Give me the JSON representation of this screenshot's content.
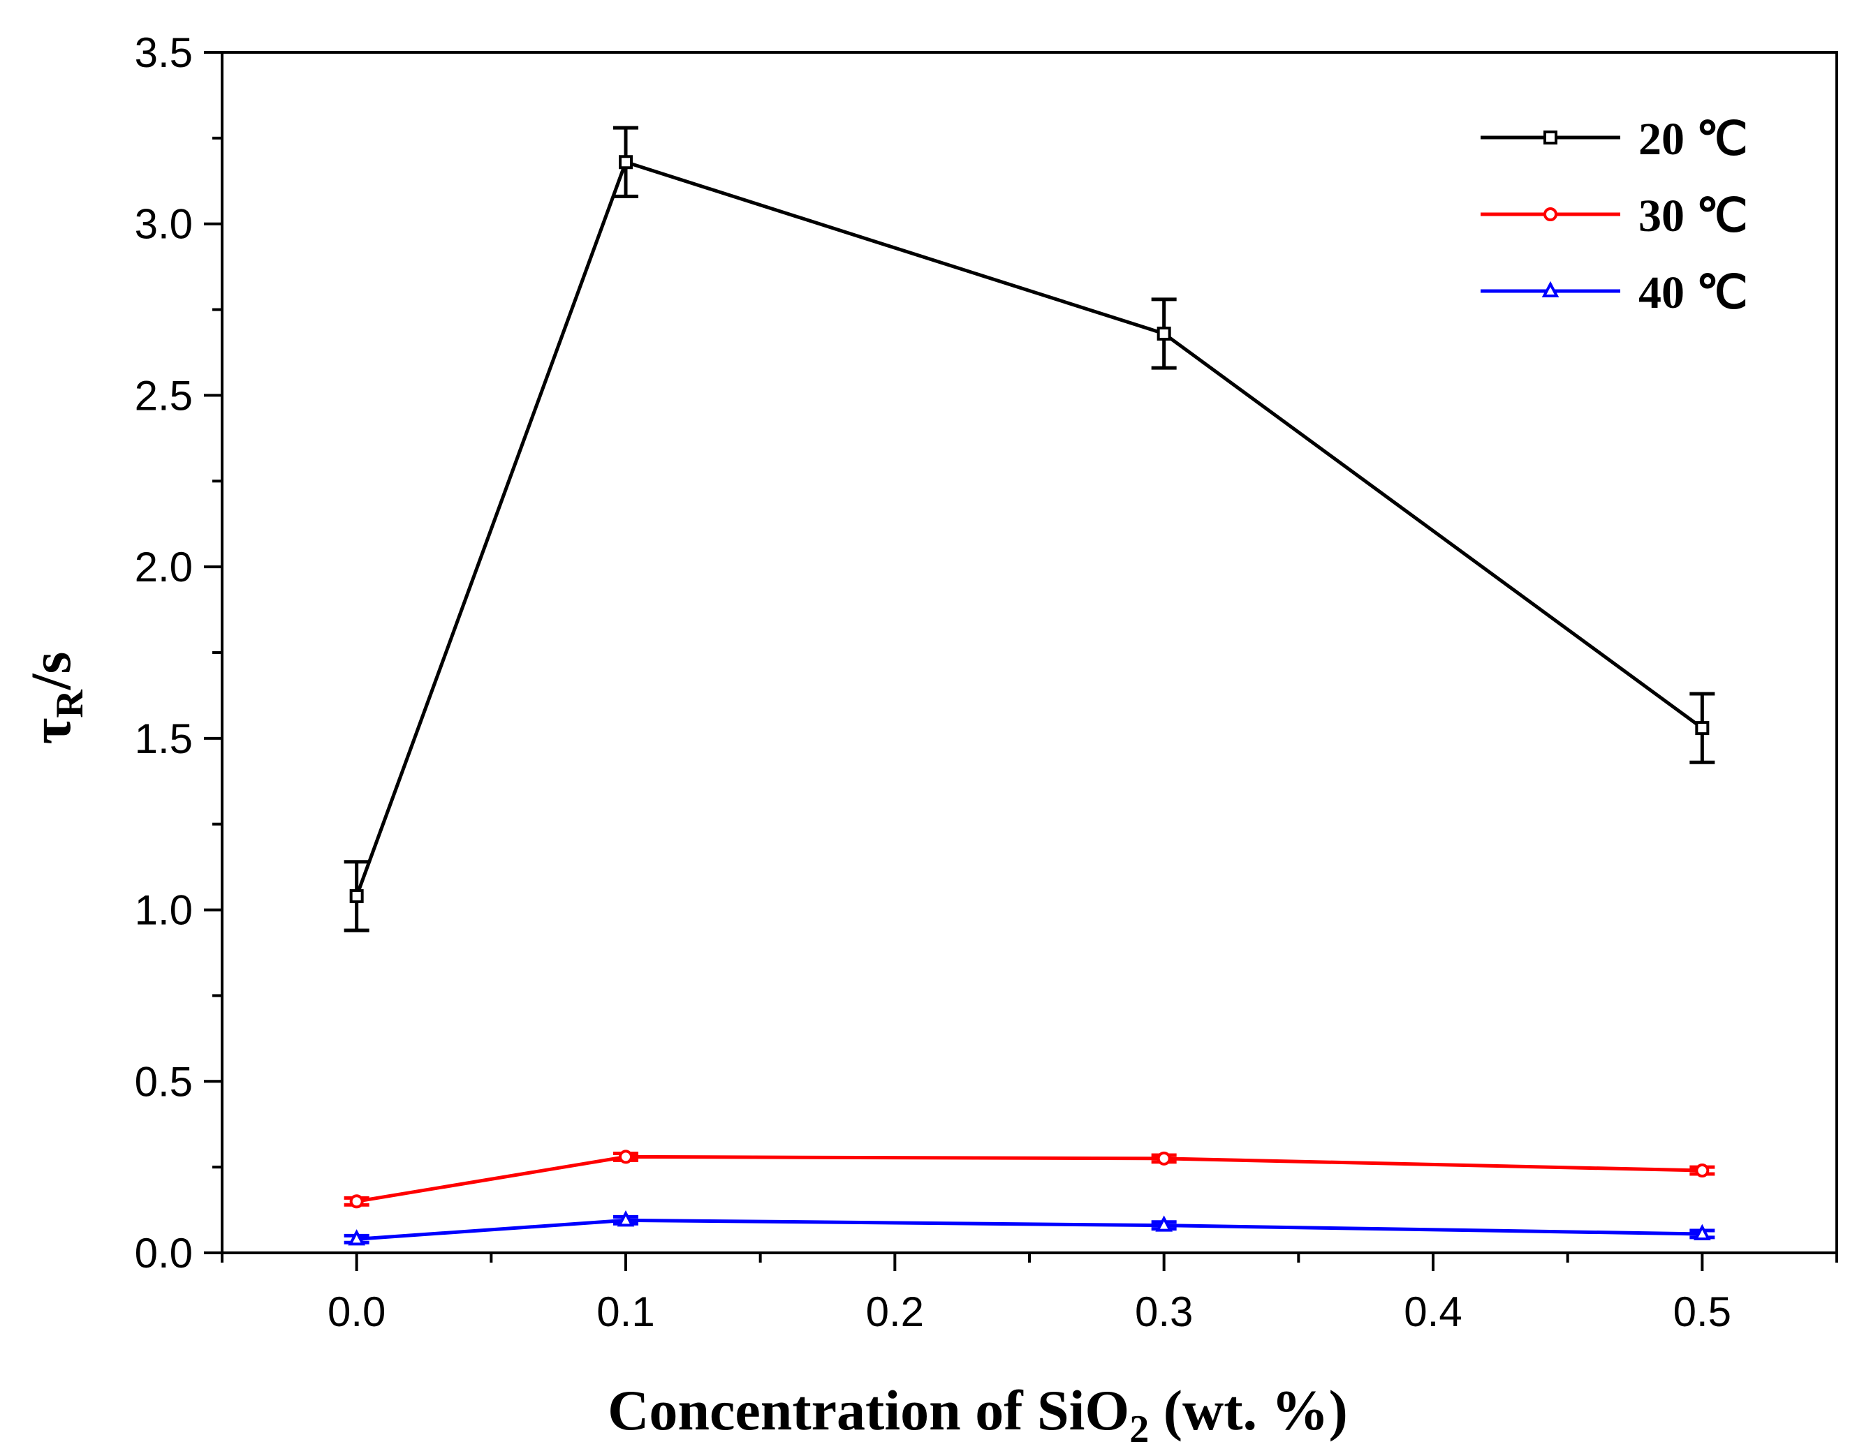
{
  "chart_data": {
    "type": "line",
    "xlabel": {
      "main": "Concentration of SiO",
      "sub": "2",
      "tail": " (wt. %)"
    },
    "ylabel": {
      "main": "τ",
      "sub": "R",
      "tail": "/s"
    },
    "xlim": [
      -0.05,
      0.55
    ],
    "ylim": [
      0.0,
      3.5
    ],
    "xticks": [
      "0.0",
      "0.1",
      "0.2",
      "0.3",
      "0.4",
      "0.5"
    ],
    "yticks": [
      "0.0",
      "0.5",
      "1.0",
      "1.5",
      "2.0",
      "2.5",
      "3.0",
      "3.5"
    ],
    "x": [
      0.0,
      0.1,
      0.3,
      0.5
    ],
    "legend_position": "top-right",
    "series": [
      {
        "name": "20 ℃",
        "color": "#000000",
        "marker": "square",
        "values": [
          1.04,
          3.18,
          2.68,
          1.53
        ],
        "errors": [
          0.1,
          0.1,
          0.1,
          0.1
        ]
      },
      {
        "name": "30 ℃",
        "color": "#ff0000",
        "marker": "circle",
        "values": [
          0.15,
          0.28,
          0.275,
          0.24
        ],
        "errors": [
          0.01,
          0.01,
          0.01,
          0.01
        ]
      },
      {
        "name": "40 ℃",
        "color": "#0000ff",
        "marker": "triangle",
        "values": [
          0.04,
          0.095,
          0.08,
          0.055
        ],
        "errors": [
          0.01,
          0.01,
          0.01,
          0.01
        ]
      }
    ]
  }
}
